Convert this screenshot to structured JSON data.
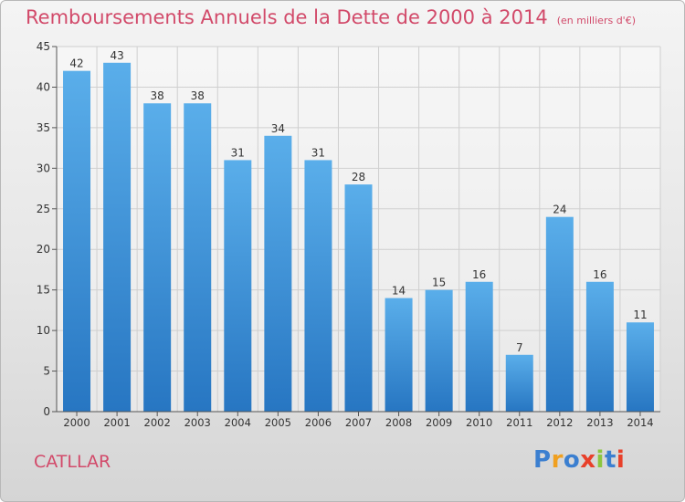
{
  "chart_data": {
    "type": "bar",
    "title": "Remboursements Annuels de la Dette de 2000 à 2014",
    "subtitle": "(en milliers d'€)",
    "categories": [
      "2000",
      "2001",
      "2002",
      "2003",
      "2004",
      "2005",
      "2006",
      "2007",
      "2008",
      "2009",
      "2010",
      "2011",
      "2012",
      "2013",
      "2014"
    ],
    "values": [
      42,
      43,
      38,
      38,
      31,
      34,
      31,
      28,
      14,
      15,
      16,
      7,
      24,
      16,
      11
    ],
    "xlabel": "",
    "ylabel": "",
    "ylim": [
      0,
      45
    ],
    "yticks": [
      0,
      5,
      10,
      15,
      20,
      25,
      30,
      35,
      40,
      45
    ],
    "grid": true,
    "data_labels": true
  },
  "footer": {
    "commune": "CATLLAR",
    "logo_text": "Proxiti"
  },
  "colors": {
    "title": "#d24a6a",
    "bar_top": "#5aaeea",
    "bar_bottom": "#2776c2",
    "grid": "#cfcfcf",
    "axis": "#555555",
    "logo": [
      "#3b7fd0",
      "#f0a020",
      "#3b7fd0",
      "#e8402a",
      "#8cc63f",
      "#3b7fd0",
      "#e8402a"
    ]
  }
}
